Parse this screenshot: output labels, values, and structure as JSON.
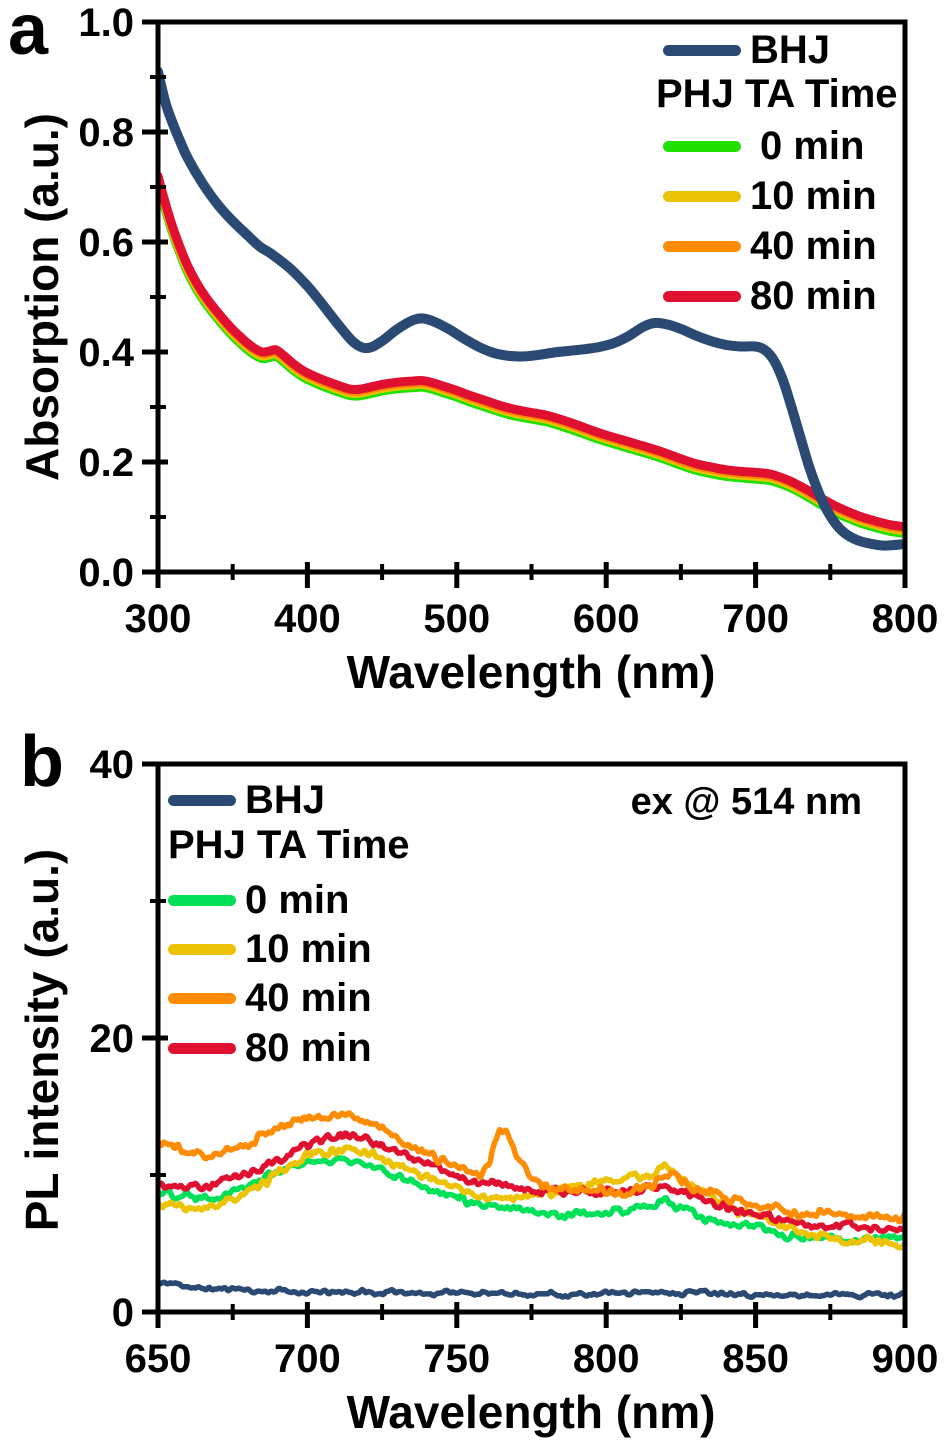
{
  "panels": [
    {
      "letter": "a",
      "xlabel": "Wavelength (nm)",
      "ylabel": "Absorption (a.u.)",
      "legend": {
        "bhj": "BHJ",
        "group": "PHJ TA Time",
        "items": [
          "0 min",
          "10 min",
          "40 min",
          "80 min"
        ]
      }
    },
    {
      "letter": "b",
      "xlabel": "Wavelength (nm)",
      "ylabel": "PL intensity (a.u.)",
      "annotation": "ex @ 514 nm",
      "legend": {
        "bhj": "BHJ",
        "group": "PHJ TA Time",
        "items": [
          "0 min",
          "10 min",
          "40 min",
          "80 min"
        ]
      }
    }
  ],
  "chart_data": [
    {
      "type": "line",
      "xlabel": "Wavelength (nm)",
      "ylabel": "Absorption (a.u.)",
      "xlim": [
        300,
        800
      ],
      "ylim": [
        0,
        1
      ],
      "x_ticks": [
        300,
        400,
        500,
        600,
        700,
        800
      ],
      "x_minor_ticks": [
        350,
        450,
        550,
        650,
        750
      ],
      "y_ticks": [
        0,
        0.2,
        0.4,
        0.6,
        0.8,
        1.0
      ],
      "y_tick_labels": [
        "0.0",
        "0.2",
        "0.4",
        "0.6",
        "0.8",
        "1.0"
      ],
      "y_minor_ticks": [
        0.1,
        0.3,
        0.5,
        0.7,
        0.9
      ],
      "legend_position": "top-right",
      "grid": false,
      "draw_order": [
        1,
        2,
        3,
        4,
        0
      ],
      "series": [
        {
          "name": "BHJ",
          "color": "#2a4a73",
          "width": 10,
          "x": [
            300,
            305,
            310,
            315,
            320,
            330,
            340,
            350,
            360,
            368,
            375,
            382,
            390,
            400,
            410,
            420,
            430,
            437,
            443,
            450,
            460,
            470,
            477,
            485,
            495,
            505,
            515,
            525,
            535,
            545,
            555,
            565,
            575,
            585,
            595,
            605,
            615,
            625,
            633,
            641,
            650,
            660,
            670,
            680,
            690,
            700,
            706,
            712,
            718,
            724,
            730,
            736,
            742,
            748,
            754,
            760,
            768,
            776,
            786,
            800
          ],
          "y": [
            0.91,
            0.853,
            0.815,
            0.782,
            0.752,
            0.706,
            0.668,
            0.638,
            0.612,
            0.592,
            0.58,
            0.566,
            0.548,
            0.52,
            0.487,
            0.452,
            0.42,
            0.408,
            0.409,
            0.42,
            0.441,
            0.457,
            0.461,
            0.455,
            0.441,
            0.424,
            0.409,
            0.398,
            0.393,
            0.392,
            0.395,
            0.399,
            0.402,
            0.405,
            0.409,
            0.416,
            0.429,
            0.446,
            0.453,
            0.45,
            0.442,
            0.43,
            0.42,
            0.413,
            0.41,
            0.41,
            0.404,
            0.386,
            0.351,
            0.3,
            0.245,
            0.19,
            0.146,
            0.111,
            0.086,
            0.07,
            0.058,
            0.052,
            0.048,
            0.051
          ]
        },
        {
          "name": "0 min",
          "color": "#22e000",
          "width": 9,
          "derived_from": "80 min",
          "offset": -0.012
        },
        {
          "name": "10 min",
          "color": "#ecc405",
          "width": 9,
          "derived_from": "80 min",
          "offset": -0.007
        },
        {
          "name": "40 min",
          "color": "#ff8c05",
          "width": 9,
          "derived_from": "80 min",
          "offset": -0.0035
        },
        {
          "name": "80 min",
          "color": "#e01030",
          "width": 9,
          "x": [
            300,
            305,
            310,
            315,
            320,
            325,
            330,
            335,
            340,
            345,
            350,
            355,
            360,
            365,
            370,
            375,
            379,
            384,
            390,
            395,
            400,
            410,
            420,
            428,
            434,
            440,
            450,
            460,
            470,
            477,
            484,
            492,
            500,
            510,
            520,
            530,
            540,
            550,
            560,
            570,
            580,
            590,
            600,
            610,
            620,
            630,
            640,
            650,
            660,
            670,
            680,
            690,
            700,
            710,
            720,
            728,
            736,
            744,
            752,
            760,
            770,
            780,
            790,
            800
          ],
          "y": [
            0.72,
            0.67,
            0.626,
            0.589,
            0.556,
            0.53,
            0.508,
            0.489,
            0.472,
            0.456,
            0.441,
            0.428,
            0.416,
            0.406,
            0.4,
            0.402,
            0.404,
            0.394,
            0.38,
            0.37,
            0.362,
            0.35,
            0.34,
            0.333,
            0.332,
            0.335,
            0.341,
            0.345,
            0.347,
            0.348,
            0.344,
            0.337,
            0.33,
            0.32,
            0.311,
            0.302,
            0.295,
            0.29,
            0.285,
            0.277,
            0.268,
            0.258,
            0.249,
            0.241,
            0.233,
            0.225,
            0.216,
            0.206,
            0.197,
            0.191,
            0.186,
            0.183,
            0.181,
            0.178,
            0.169,
            0.159,
            0.147,
            0.134,
            0.122,
            0.112,
            0.101,
            0.093,
            0.086,
            0.082
          ]
        }
      ]
    },
    {
      "type": "line",
      "xlabel": "Wavelength (nm)",
      "ylabel": "PL intensity (a.u.)",
      "annotation": "ex @ 514 nm",
      "xlim": [
        650,
        900
      ],
      "ylim": [
        0,
        40
      ],
      "x_ticks": [
        650,
        700,
        750,
        800,
        850,
        900
      ],
      "x_minor_ticks": [
        675,
        725,
        775,
        825,
        875
      ],
      "y_ticks": [
        0,
        20,
        40
      ],
      "y_tick_labels": [
        "0",
        "20",
        "40"
      ],
      "y_minor_ticks": [
        10,
        30
      ],
      "legend_position": "top-left",
      "grid": false,
      "draw_order": [
        0,
        1,
        2,
        4,
        3
      ],
      "series": [
        {
          "name": "BHJ",
          "color": "#2a4a73",
          "width": 5.5,
          "noise_amp": 0.2,
          "seed": 11,
          "x": [
            650,
            660,
            670,
            680,
            690,
            700,
            715,
            730,
            750,
            770,
            790,
            805,
            818,
            830,
            850,
            870,
            885,
            900
          ],
          "y": [
            2.1,
            1.85,
            1.7,
            1.6,
            1.5,
            1.45,
            1.4,
            1.45,
            1.4,
            1.35,
            1.3,
            1.4,
            1.55,
            1.4,
            1.3,
            1.25,
            1.3,
            1.3
          ]
        },
        {
          "name": "0 min",
          "color": "#00e058",
          "width": 5.5,
          "noise_amp": 0.33,
          "seed": 22,
          "x": [
            650,
            658,
            665,
            673,
            681,
            690,
            698,
            706,
            712,
            720,
            728,
            736,
            744,
            752,
            760,
            768,
            776,
            784,
            792,
            800,
            808,
            814,
            819,
            824,
            830,
            838,
            846,
            854,
            862,
            872,
            882,
            892,
            900
          ],
          "y": [
            8.8,
            8.5,
            8.4,
            8.7,
            9.4,
            10.2,
            10.8,
            11.1,
            11.0,
            10.6,
            10.0,
            9.4,
            8.8,
            8.2,
            7.8,
            7.5,
            7.3,
            7.2,
            7.2,
            7.3,
            7.4,
            7.6,
            8.2,
            7.6,
            7.1,
            6.6,
            6.2,
            5.9,
            5.6,
            5.4,
            5.3,
            5.4,
            5.5
          ]
        },
        {
          "name": "10 min",
          "color": "#ecc405",
          "width": 5.5,
          "noise_amp": 0.38,
          "seed": 33,
          "x": [
            650,
            658,
            665,
            673,
            681,
            690,
            698,
            706,
            714,
            722,
            730,
            738,
            746,
            754,
            762,
            770,
            778,
            786,
            794,
            802,
            810,
            816,
            821,
            826,
            832,
            840,
            848,
            856,
            864,
            874,
            884,
            894,
            900
          ],
          "y": [
            7.9,
            7.6,
            7.6,
            8.0,
            8.8,
            9.9,
            11.0,
            11.8,
            12.0,
            11.5,
            10.7,
            9.9,
            9.2,
            8.7,
            8.4,
            8.3,
            8.6,
            9.1,
            9.4,
            9.5,
            9.7,
            10.1,
            10.6,
            9.7,
            8.8,
            7.8,
            7.0,
            6.4,
            5.9,
            5.5,
            5.2,
            5.0,
            4.9
          ]
        },
        {
          "name": "40 min",
          "color": "#ff8c05",
          "width": 5.5,
          "noise_amp": 0.36,
          "seed": 44,
          "x": [
            650,
            656,
            662,
            668,
            675,
            682,
            690,
            697,
            704,
            710,
            716,
            724,
            732,
            740,
            747,
            753,
            758,
            761,
            764,
            767,
            770,
            774,
            778,
            784,
            790,
            798,
            806,
            812,
            818,
            822,
            827,
            834,
            842,
            850,
            858,
            868,
            878,
            888,
            900
          ],
          "y": [
            12.4,
            11.9,
            11.5,
            11.5,
            11.9,
            12.5,
            13.4,
            14.1,
            14.5,
            14.4,
            14.1,
            13.4,
            12.5,
            11.6,
            10.8,
            10.3,
            10.1,
            11.0,
            13.2,
            13.3,
            11.5,
            9.9,
            9.3,
            9.0,
            8.8,
            8.7,
            8.7,
            8.9,
            9.6,
            10.2,
            9.4,
            8.7,
            8.2,
            7.8,
            7.5,
            7.2,
            7.1,
            7.0,
            7.0
          ]
        },
        {
          "name": "80 min",
          "color": "#e01030",
          "width": 5.5,
          "noise_amp": 0.36,
          "seed": 55,
          "x": [
            650,
            658,
            665,
            673,
            681,
            690,
            698,
            706,
            712,
            718,
            726,
            734,
            742,
            750,
            758,
            766,
            774,
            782,
            790,
            798,
            806,
            812,
            817,
            822,
            828,
            836,
            844,
            852,
            860,
            870,
            880,
            890,
            900
          ],
          "y": [
            9.4,
            9.2,
            9.3,
            9.6,
            10.2,
            11.0,
            12.0,
            12.8,
            13.0,
            12.8,
            12.1,
            11.3,
            10.6,
            10.0,
            9.5,
            9.1,
            8.9,
            8.8,
            8.7,
            8.6,
            8.7,
            8.9,
            9.3,
            9.0,
            8.5,
            7.9,
            7.4,
            7.0,
            6.7,
            6.4,
            6.2,
            6.1,
            6.0
          ]
        }
      ]
    }
  ]
}
